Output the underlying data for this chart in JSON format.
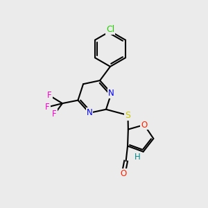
{
  "background_color": "#ebebeb",
  "bond_color": "#000000",
  "bond_width": 1.5,
  "atom_colors": {
    "Cl": "#22cc00",
    "N": "#0000ee",
    "S": "#cccc00",
    "O": "#ff2200",
    "F": "#ff00cc",
    "H": "#008888",
    "C": "#000000"
  },
  "font_size": 8.5
}
